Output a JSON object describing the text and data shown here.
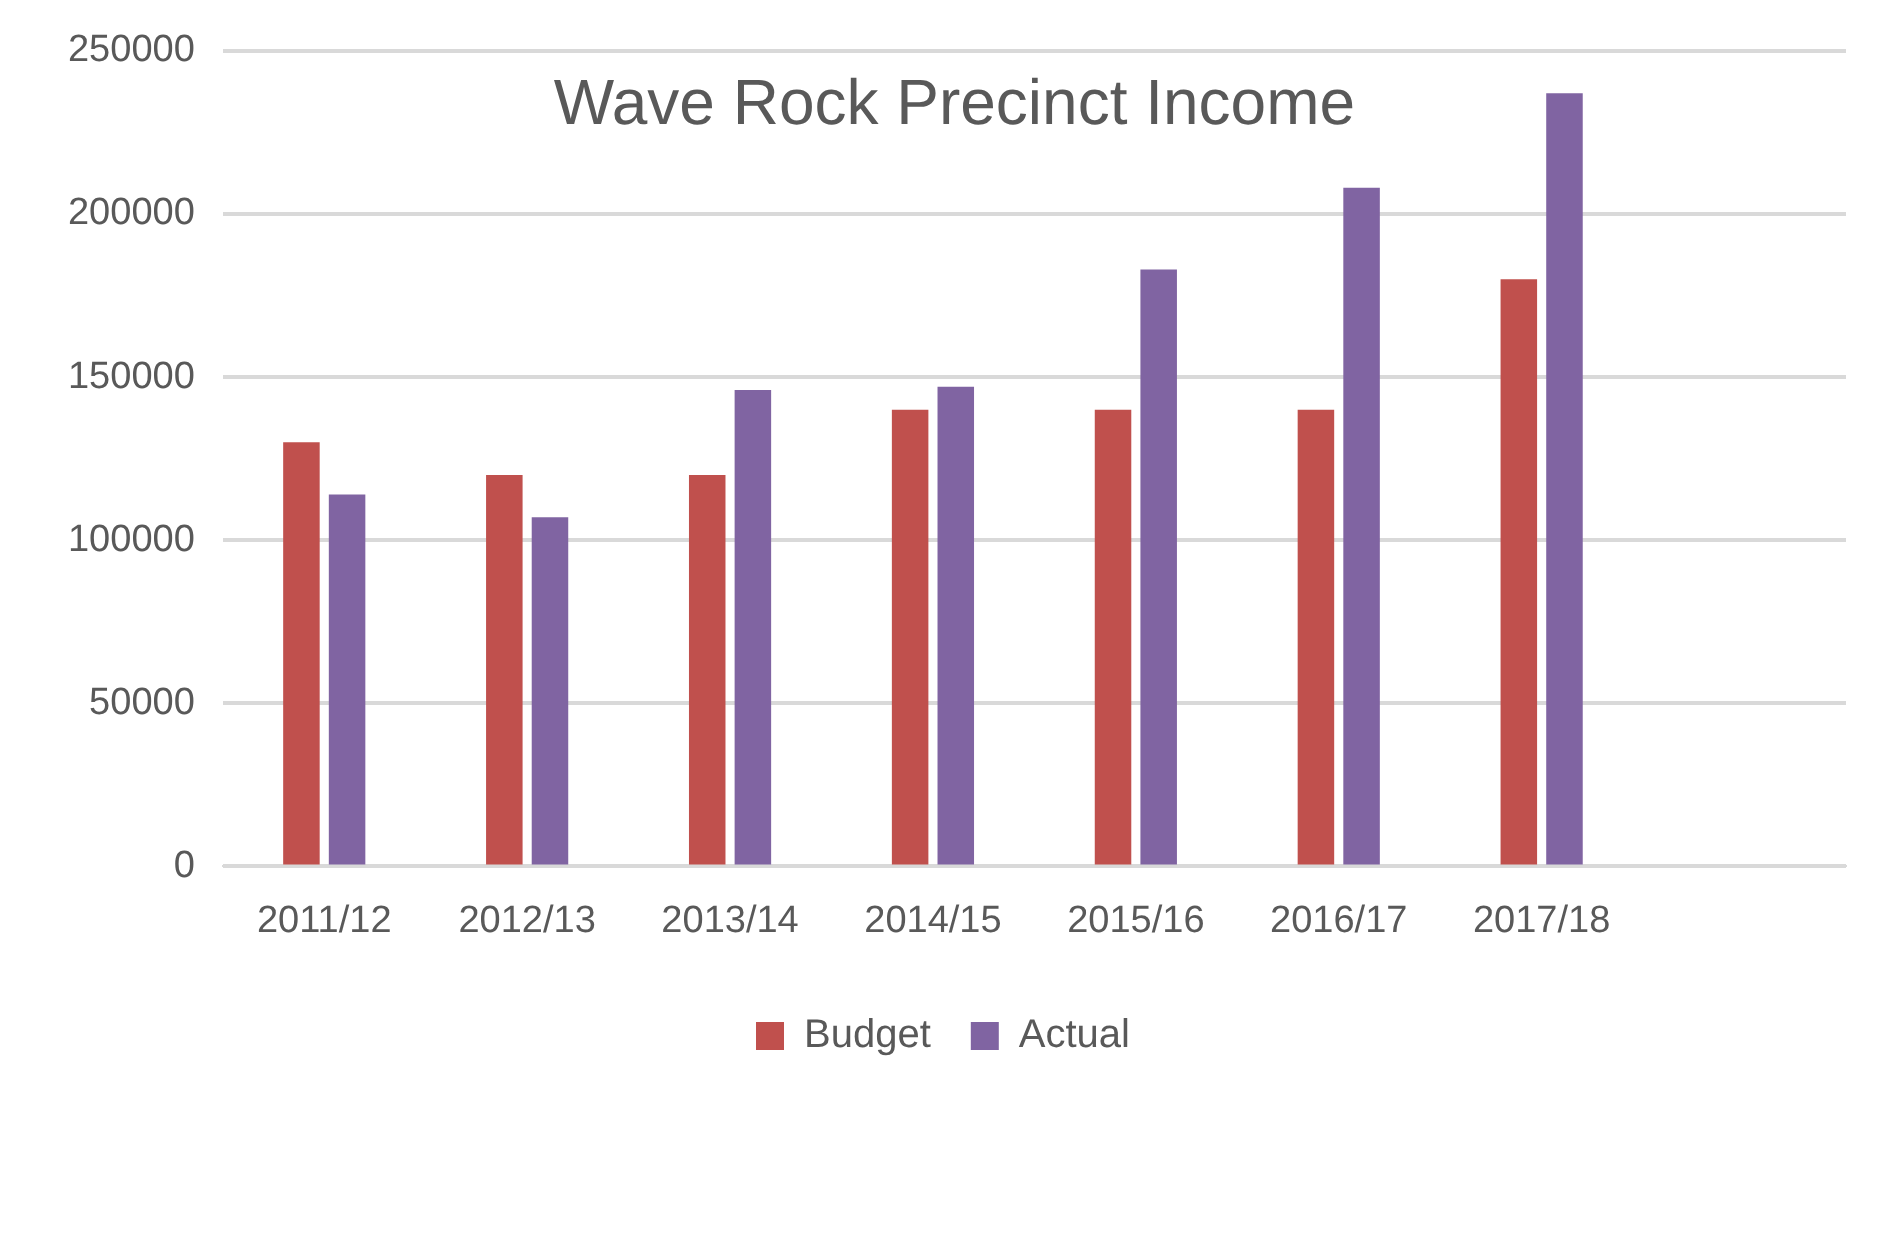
{
  "chart_data": {
    "type": "bar",
    "title": "Wave Rock Precinct Income",
    "categories": [
      "2011/12",
      "2012/13",
      "2013/14",
      "2014/15",
      "2015/16",
      "2016/17",
      "2017/18",
      null
    ],
    "series": [
      {
        "name": "Budget",
        "color": "#c0504d",
        "values": [
          130000,
          120000,
          120000,
          140000,
          140000,
          140000,
          180000,
          null
        ]
      },
      {
        "name": "Actual",
        "color": "#8064a2",
        "values": [
          114000,
          107000,
          146000,
          147000,
          183000,
          208000,
          237000,
          null
        ]
      }
    ],
    "ylim": [
      0,
      250000
    ],
    "yticks": [
      0,
      50000,
      100000,
      150000,
      200000,
      250000
    ],
    "grid": "y",
    "legend": "bottom"
  }
}
